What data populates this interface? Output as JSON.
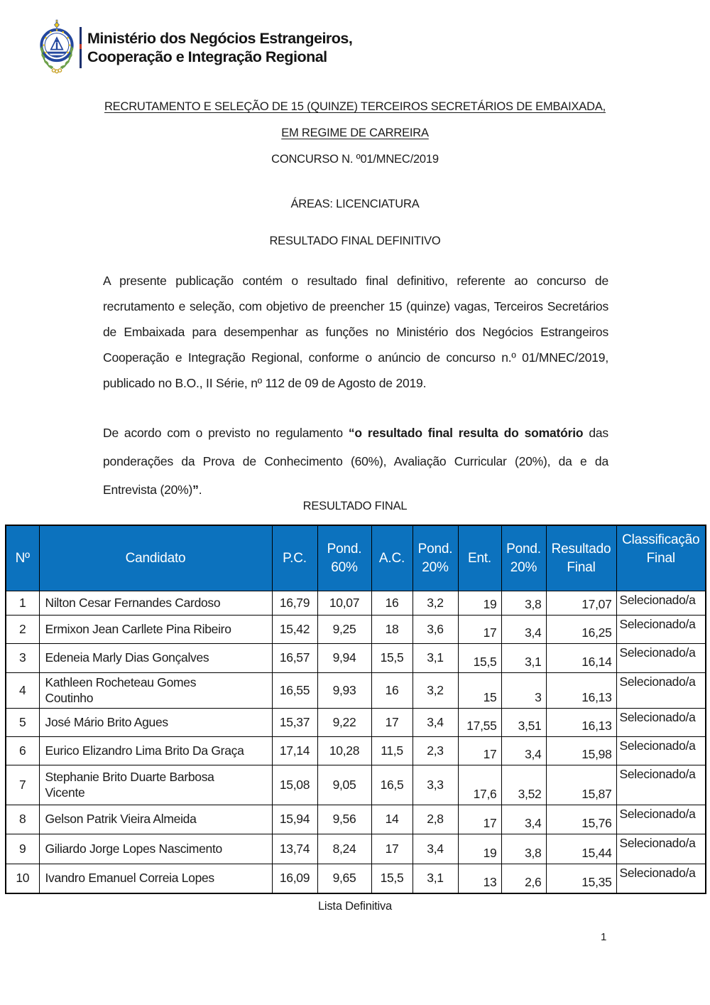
{
  "ministry": {
    "name_line1": "Ministério dos Negócios Estrangeiros,",
    "name_line2": "Cooperação e Integração Regional"
  },
  "title": {
    "line1": "RECRUTAMENTO E SELEÇÃO DE 15 (QUINZE) TERCEIROS SECRETÁRIOS DE EMBAIXADA,",
    "line2": "EM REGIME DE CARREIRA",
    "line3": "CONCURSO N. º01/MNEC/2019"
  },
  "sections": {
    "areas": "ÁREAS: LICENCIATURA",
    "final_definitive": "RESULTADO FINAL DEFINITIVO",
    "resultado_final": "RESULTADO FINAL",
    "lista_definitiva": "Lista Definitiva"
  },
  "paragraph1": "A presente publicação contém o resultado final definitivo, referente ao concurso de recrutamento e seleção, com objetivo de preencher 15 (quinze) vagas, Terceiros Secretários de Embaixada para desempenhar as funções no Ministério dos Negócios Estrangeiros Cooperação e Integração Regional, conforme o anúncio de concurso n.º 01/MNEC/2019, publicado no B.O., II Série, nº 112 de 09 de Agosto de 2019.",
  "paragraph2": {
    "pre": "De acordo com o previsto no regulamento ",
    "bold_quote": "“o resultado final resulta do somatório",
    "mid": " das ponderações da Prova de Conhecimento (60%), Avaliação Curricular (20%), da e da Entrevista (20%)",
    "bold_close": "”",
    "post": "."
  },
  "table": {
    "headers": {
      "no": "Nº",
      "candidato": "Candidato",
      "pc": "P.C.",
      "pond60": "Pond. 60%",
      "ac": "A.C.",
      "pond20a": "Pond. 20%",
      "ent": "Ent.",
      "pond20b": "Pond. 20%",
      "resultado": "Resultado Final",
      "classificacao": "Classificação Final"
    },
    "rows": [
      {
        "no": "1",
        "name": "Nilton Cesar Fernandes Cardoso",
        "pc": "16,79",
        "pond60": "10,07",
        "ac": "16",
        "pond20a": "3,2",
        "ent": "19",
        "pond20b": "3,8",
        "resultado": "17,07",
        "classificacao": "Selecionado/a"
      },
      {
        "no": "2",
        "name": "Ermixon Jean Carllete Pina Ribeiro",
        "pc": "15,42",
        "pond60": "9,25",
        "ac": "18",
        "pond20a": "3,6",
        "ent": "17",
        "pond20b": "3,4",
        "resultado": "16,25",
        "classificacao": "Selecionado/a"
      },
      {
        "no": "3",
        "name": "Edeneia Marly Dias Gonçalves",
        "pc": "16,57",
        "pond60": "9,94",
        "ac": "15,5",
        "pond20a": "3,1",
        "ent": "15,5",
        "pond20b": "3,1",
        "resultado": "16,14",
        "classificacao": "Selecionado/a"
      },
      {
        "no": "4",
        "name": "Kathleen Rocheteau Gomes\nCoutinho",
        "pc": "16,55",
        "pond60": "9,93",
        "ac": "16",
        "pond20a": "3,2",
        "ent": "15",
        "pond20b": "3",
        "resultado": "16,13",
        "classificacao": "Selecionado/a"
      },
      {
        "no": "5",
        "name": "José Mário Brito Agues",
        "pc": "15,37",
        "pond60": "9,22",
        "ac": "17",
        "pond20a": "3,4",
        "ent": "17,55",
        "pond20b": "3,51",
        "resultado": "16,13",
        "classificacao": "Selecionado/a"
      },
      {
        "no": "6",
        "name": "Eurico Elizandro Lima Brito Da Graça",
        "pc": "17,14",
        "pond60": "10,28",
        "ac": "11,5",
        "pond20a": "2,3",
        "ent": "17",
        "pond20b": "3,4",
        "resultado": "15,98",
        "classificacao": "Selecionado/a"
      },
      {
        "no": "7",
        "name": "Stephanie Brito Duarte Barbosa\nVicente",
        "pc": "15,08",
        "pond60": "9,05",
        "ac": "16,5",
        "pond20a": "3,3",
        "ent": "17,6",
        "pond20b": "3,52",
        "resultado": "15,87",
        "classificacao": "Selecionado/a"
      },
      {
        "no": "8",
        "name": "Gelson Patrik Vieira Almeida",
        "pc": "15,94",
        "pond60": "9,56",
        "ac": "14",
        "pond20a": "2,8",
        "ent": "17",
        "pond20b": "3,4",
        "resultado": "15,76",
        "classificacao": "Selecionado/a"
      },
      {
        "no": "9",
        "name": "Giliardo Jorge Lopes Nascimento",
        "pc": "13,74",
        "pond60": "8,24",
        "ac": "17",
        "pond20a": "3,4",
        "ent": "19",
        "pond20b": "3,8",
        "resultado": "15,44",
        "classificacao": "Selecionado/a"
      },
      {
        "no": "10",
        "name": "Ivandro Emanuel Correia Lopes",
        "pc": "16,09",
        "pond60": "9,65",
        "ac": "15,5",
        "pond20a": "3,1",
        "ent": "13",
        "pond20b": "2,6",
        "resultado": "15,35",
        "classificacao": "Selecionado/a"
      }
    ]
  },
  "page_number": "1",
  "colors": {
    "table_header_blue": "#0c72be",
    "emblem_blue": "#23479e",
    "laurel_green": "#57923d",
    "star_yellow": "#f2c817"
  }
}
